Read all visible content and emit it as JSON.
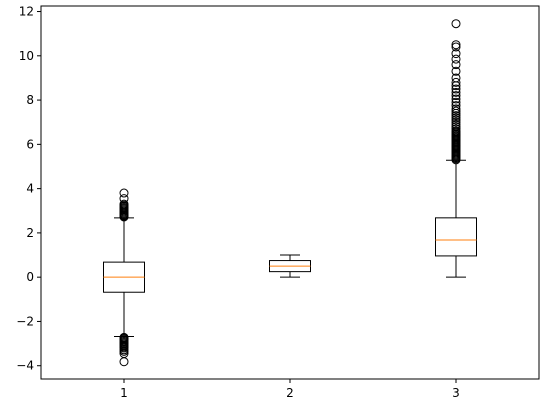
{
  "chart_data": {
    "type": "boxplot",
    "title": "",
    "xlabel": "",
    "ylabel": "",
    "categories": [
      "1",
      "2",
      "3"
    ],
    "ylim": [
      -4.6,
      12.25
    ],
    "yticks": [
      -4,
      -2,
      0,
      2,
      4,
      6,
      8,
      10,
      12
    ],
    "ytick_labels": [
      "−4",
      "−2",
      "0",
      "2",
      "4",
      "6",
      "8",
      "10",
      "12"
    ],
    "grid": false,
    "colors": {
      "box": "#000000",
      "median": "#ff7f0e",
      "axes": "#000000",
      "background": "#ffffff"
    },
    "series": [
      {
        "category": "1",
        "q1": -0.68,
        "median": 0.0,
        "q3": 0.68,
        "whisker_low": -2.68,
        "whisker_high": 2.68,
        "outliers": [
          2.72,
          2.76,
          2.8,
          2.85,
          2.9,
          2.95,
          3.0,
          3.05,
          3.1,
          3.15,
          3.2,
          3.25,
          3.3,
          3.55,
          3.8,
          -2.72,
          -2.76,
          -2.8,
          -2.85,
          -2.9,
          -2.95,
          -3.0,
          -3.05,
          -3.1,
          -3.15,
          -3.2,
          -3.28,
          -3.35,
          -3.45,
          -3.82
        ]
      },
      {
        "category": "2",
        "q1": 0.25,
        "median": 0.5,
        "q3": 0.75,
        "whisker_low": 0.0,
        "whisker_high": 1.0,
        "outliers": []
      },
      {
        "category": "3",
        "q1": 0.96,
        "median": 1.68,
        "q3": 2.68,
        "whisker_low": 0.0,
        "whisker_high": 5.28,
        "outliers": [
          5.3,
          5.35,
          5.4,
          5.45,
          5.5,
          5.55,
          5.6,
          5.65,
          5.7,
          5.75,
          5.8,
          5.85,
          5.9,
          5.95,
          6.0,
          6.05,
          6.1,
          6.15,
          6.2,
          6.25,
          6.3,
          6.35,
          6.4,
          6.45,
          6.5,
          6.55,
          6.6,
          6.7,
          6.8,
          6.9,
          7.0,
          7.1,
          7.2,
          7.3,
          7.4,
          7.5,
          7.6,
          7.75,
          7.9,
          8.05,
          8.2,
          8.35,
          8.5,
          8.65,
          8.8,
          9.0,
          9.3,
          9.6,
          9.85,
          10.1,
          10.4,
          10.5,
          11.45
        ]
      }
    ]
  }
}
